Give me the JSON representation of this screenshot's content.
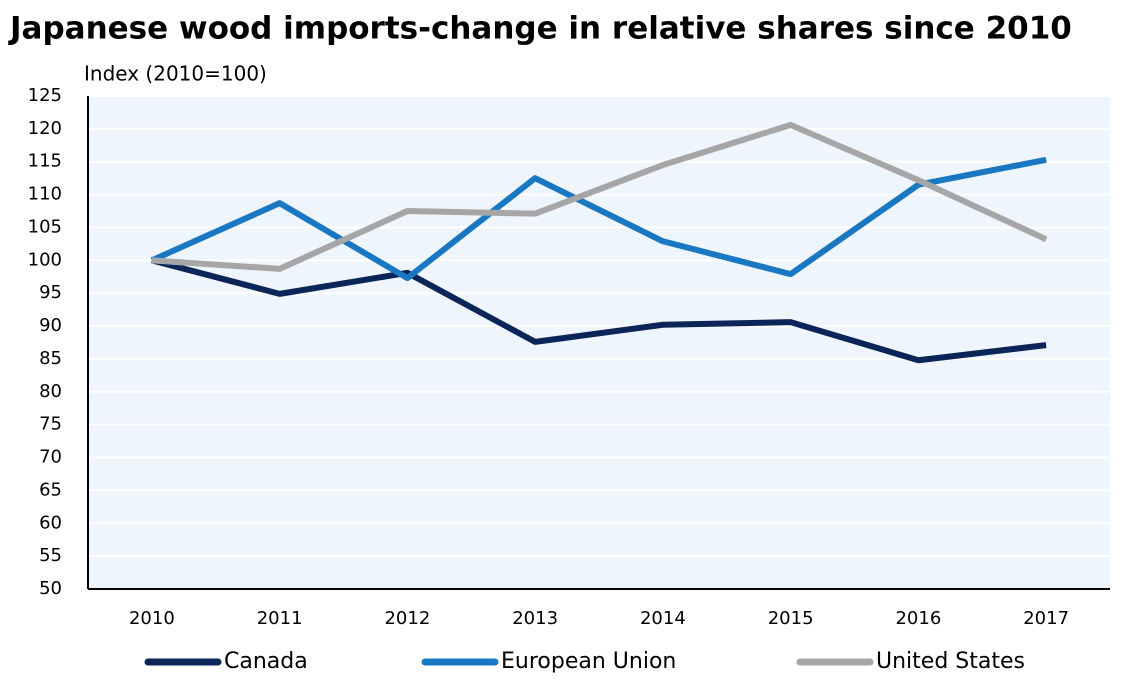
{
  "chart_data": {
    "type": "line",
    "title": "Japanese wood imports-change in relative shares since 2010",
    "y_label": "Index (2010=100)",
    "categories": [
      "2010",
      "2011",
      "2012",
      "2013",
      "2014",
      "2015",
      "2016",
      "2017"
    ],
    "series": [
      {
        "name": "Canada",
        "color": "#0b2559",
        "values": [
          100,
          94.9,
          98.1,
          87.6,
          90.2,
          90.6,
          84.8,
          87.1
        ]
      },
      {
        "name": "European Union",
        "color": "#1a78c2",
        "values": [
          100,
          108.7,
          97.3,
          112.5,
          102.9,
          97.9,
          111.5,
          115.3
        ]
      },
      {
        "name": "United States",
        "color": "#a6a6a6",
        "values": [
          100,
          98.7,
          107.5,
          107.1,
          114.5,
          120.6,
          112.2,
          103.2
        ]
      }
    ],
    "ylim": [
      50,
      125
    ],
    "yticks": [
      50,
      55,
      60,
      65,
      70,
      75,
      80,
      85,
      90,
      95,
      100,
      105,
      110,
      115,
      120,
      125
    ],
    "grid": true
  }
}
